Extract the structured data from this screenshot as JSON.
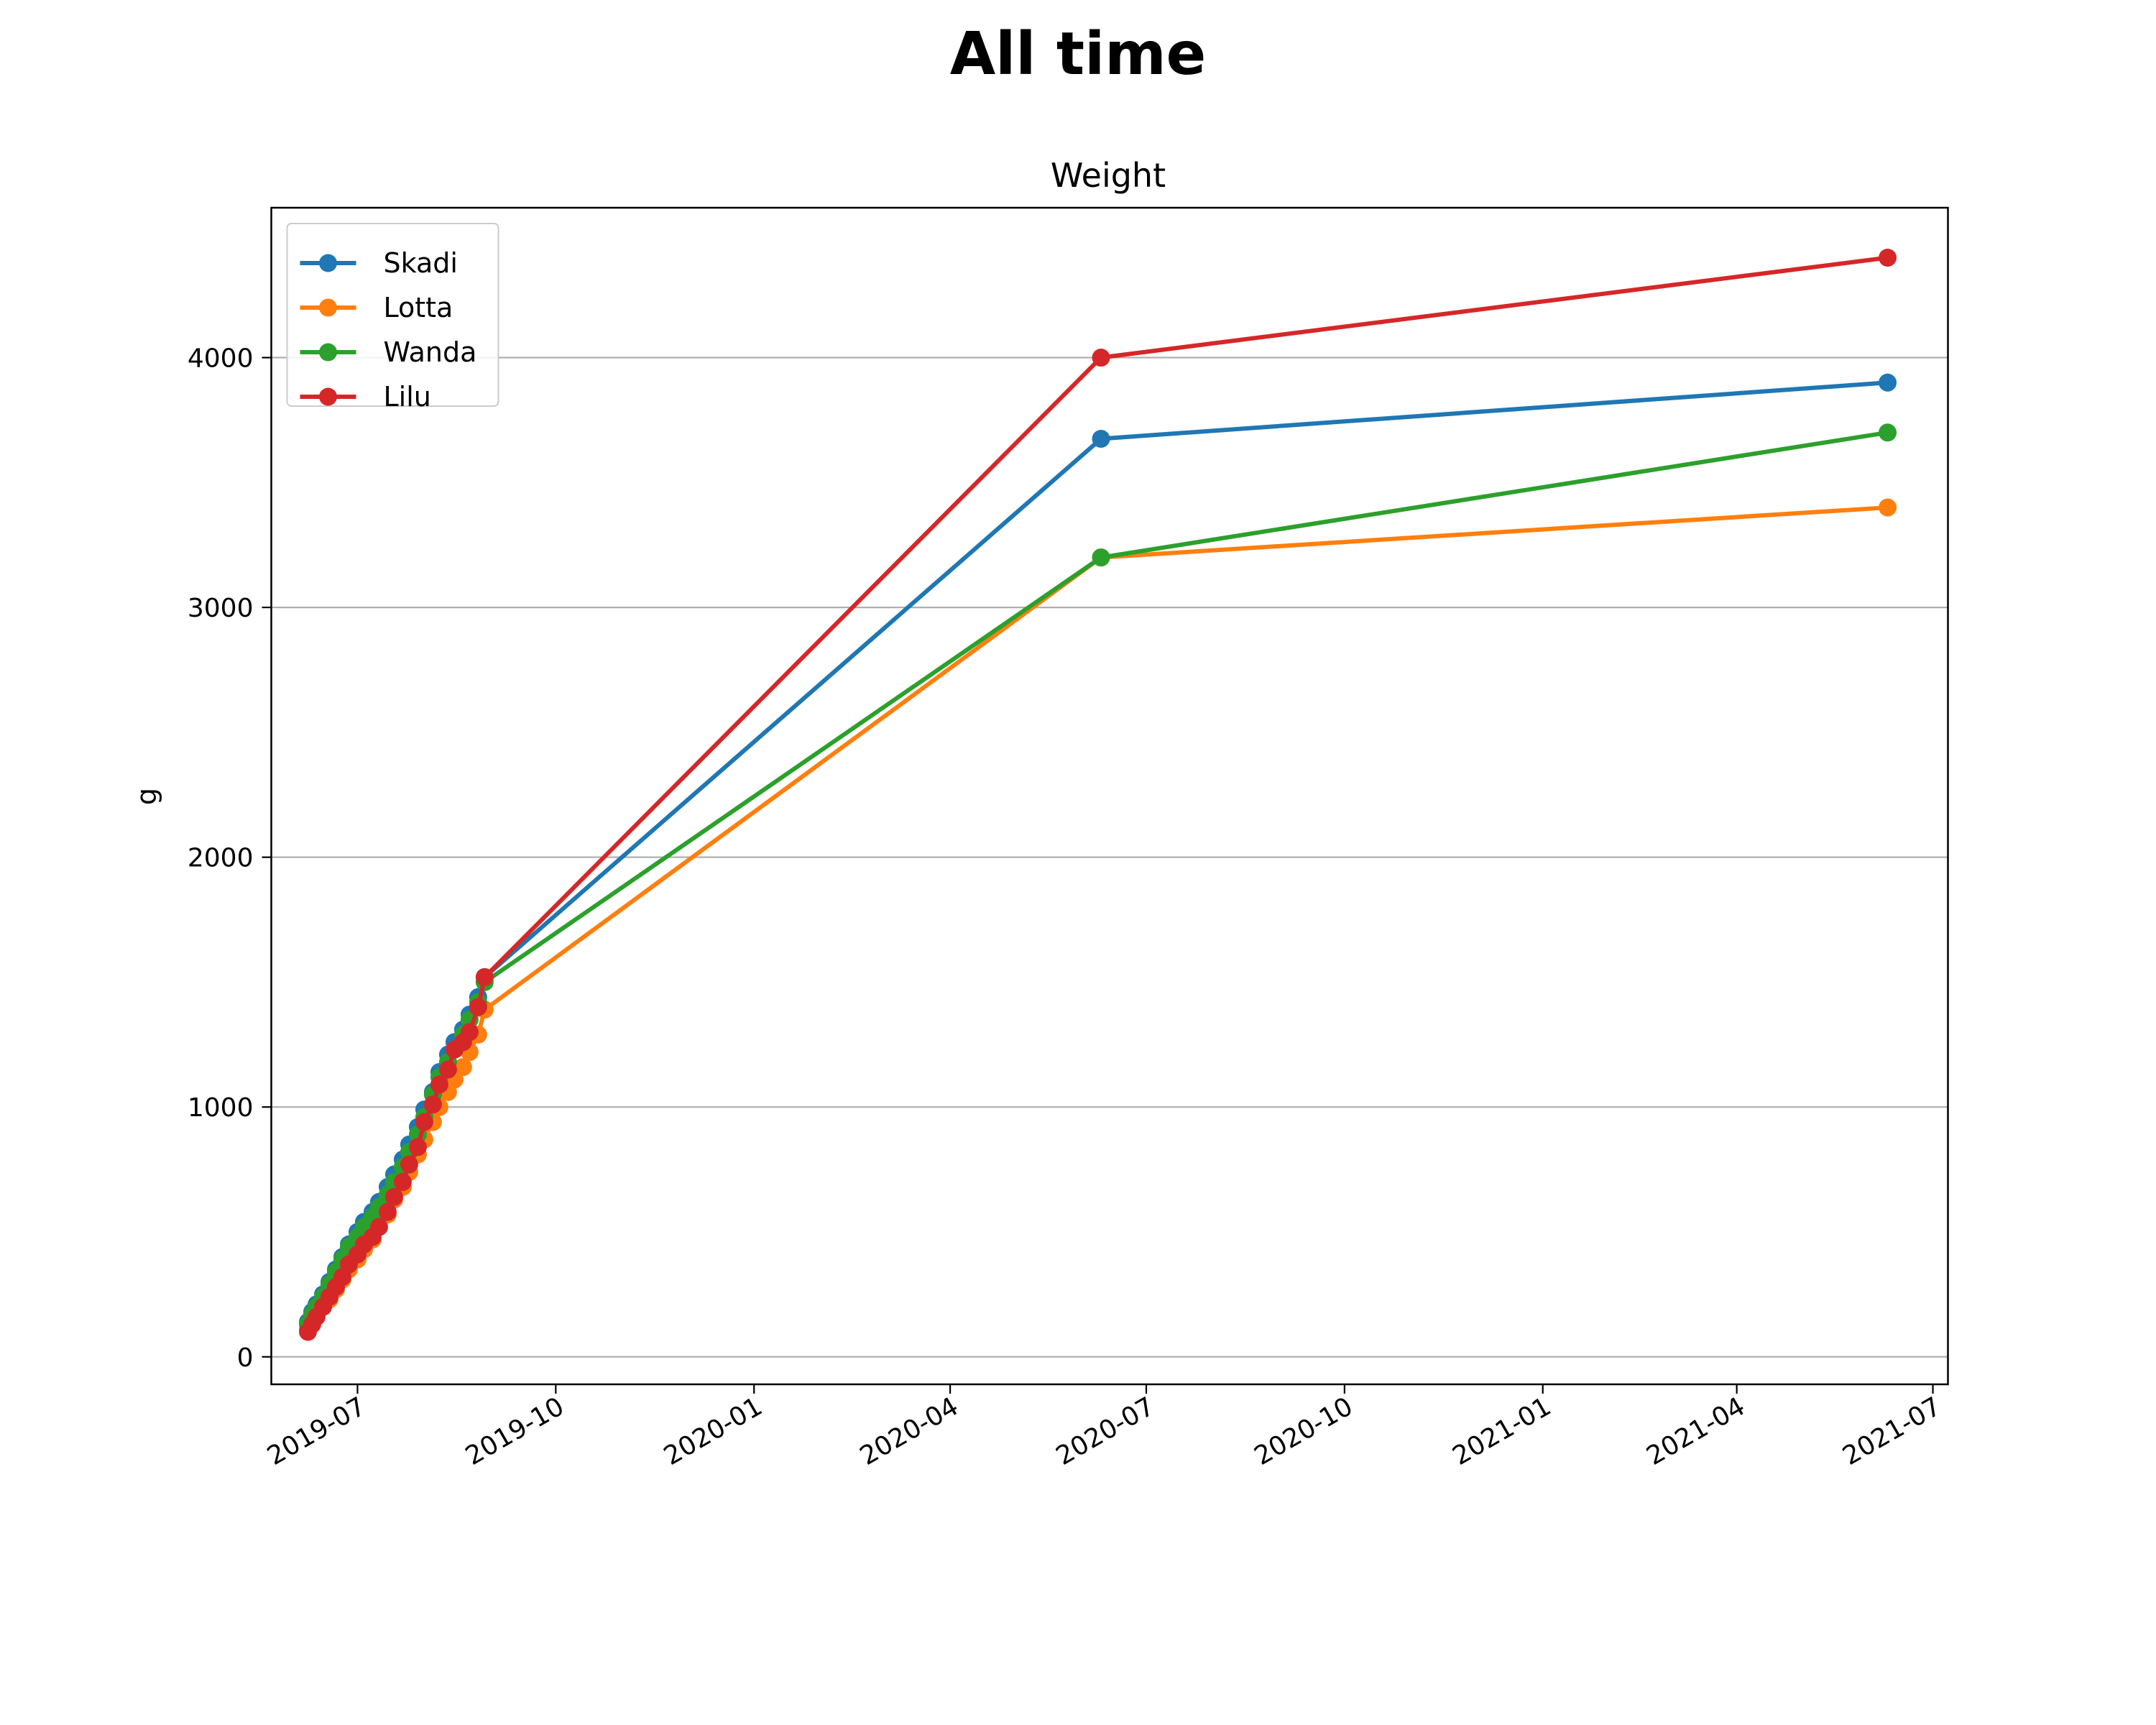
{
  "page": {
    "title": "All time"
  },
  "chart_data": {
    "type": "line",
    "title": "Weight",
    "xlabel": "",
    "ylabel": "g",
    "x_type": "date",
    "xlim": [
      "2019-05-22",
      "2021-07-08"
    ],
    "ylim": [
      -110,
      4600
    ],
    "y_ticks": [
      0,
      1000,
      2000,
      3000,
      4000
    ],
    "y_tick_labels": [
      "0",
      "1000",
      "2000",
      "3000",
      "4000"
    ],
    "x_ticks": [
      "2019-07-01",
      "2019-10-01",
      "2020-01-01",
      "2020-04-01",
      "2020-07-01",
      "2020-10-01",
      "2021-01-01",
      "2021-04-01",
      "2021-07-01"
    ],
    "x_tick_labels": [
      "2019-07",
      "2019-10",
      "2020-01",
      "2020-04",
      "2020-07",
      "2020-10",
      "2021-01",
      "2021-04",
      "2021-07"
    ],
    "grid": "horizontal",
    "legend_position": "top-left",
    "series": [
      {
        "name": "Skadi",
        "color": "#1f77b4",
        "x": [
          "2019-06-08",
          "2019-06-10",
          "2019-06-12",
          "2019-06-15",
          "2019-06-18",
          "2019-06-21",
          "2019-06-24",
          "2019-06-27",
          "2019-07-01",
          "2019-07-04",
          "2019-07-08",
          "2019-07-11",
          "2019-07-15",
          "2019-07-18",
          "2019-07-22",
          "2019-07-25",
          "2019-07-29",
          "2019-08-01",
          "2019-08-05",
          "2019-08-08",
          "2019-08-12",
          "2019-08-15",
          "2019-08-19",
          "2019-08-22",
          "2019-08-26",
          "2019-08-29",
          "2020-06-10",
          "2021-06-10"
        ],
        "y": [
          140,
          180,
          210,
          250,
          300,
          350,
          400,
          450,
          500,
          540,
          580,
          620,
          680,
          730,
          790,
          850,
          920,
          990,
          1060,
          1140,
          1210,
          1260,
          1310,
          1370,
          1440,
          1520,
          3675,
          3900
        ]
      },
      {
        "name": "Lotta",
        "color": "#ff7f0e",
        "x": [
          "2019-06-08",
          "2019-06-10",
          "2019-06-12",
          "2019-06-15",
          "2019-06-18",
          "2019-06-21",
          "2019-06-24",
          "2019-06-27",
          "2019-07-01",
          "2019-07-04",
          "2019-07-08",
          "2019-07-11",
          "2019-07-15",
          "2019-07-18",
          "2019-07-22",
          "2019-07-25",
          "2019-07-29",
          "2019-08-01",
          "2019-08-05",
          "2019-08-08",
          "2019-08-12",
          "2019-08-15",
          "2019-08-19",
          "2019-08-22",
          "2019-08-26",
          "2019-08-29",
          "2020-06-10",
          "2021-06-10"
        ],
        "y": [
          110,
          140,
          170,
          200,
          230,
          270,
          310,
          350,
          390,
          430,
          470,
          520,
          570,
          630,
          680,
          740,
          810,
          870,
          940,
          1000,
          1060,
          1110,
          1160,
          1220,
          1290,
          1390,
          3200,
          3400
        ]
      },
      {
        "name": "Wanda",
        "color": "#2ca02c",
        "x": [
          "2019-06-08",
          "2019-06-10",
          "2019-06-12",
          "2019-06-15",
          "2019-06-18",
          "2019-06-21",
          "2019-06-24",
          "2019-06-27",
          "2019-07-01",
          "2019-07-04",
          "2019-07-08",
          "2019-07-11",
          "2019-07-15",
          "2019-07-18",
          "2019-07-22",
          "2019-07-25",
          "2019-07-29",
          "2019-08-01",
          "2019-08-05",
          "2019-08-08",
          "2019-08-12",
          "2019-08-15",
          "2019-08-19",
          "2019-08-22",
          "2019-08-26",
          "2019-08-29",
          "2020-06-10",
          "2021-06-10"
        ],
        "y": [
          130,
          170,
          200,
          240,
          290,
          340,
          390,
          440,
          480,
          520,
          560,
          600,
          650,
          700,
          760,
          820,
          890,
          960,
          1050,
          1120,
          1180,
          1230,
          1290,
          1350,
          1420,
          1500,
          3200,
          3700
        ]
      },
      {
        "name": "Lilu",
        "color": "#d62728",
        "x": [
          "2019-06-08",
          "2019-06-10",
          "2019-06-12",
          "2019-06-15",
          "2019-06-18",
          "2019-06-21",
          "2019-06-24",
          "2019-06-27",
          "2019-07-01",
          "2019-07-04",
          "2019-07-08",
          "2019-07-11",
          "2019-07-15",
          "2019-07-18",
          "2019-07-22",
          "2019-07-25",
          "2019-07-29",
          "2019-08-01",
          "2019-08-05",
          "2019-08-08",
          "2019-08-12",
          "2019-08-15",
          "2019-08-19",
          "2019-08-22",
          "2019-08-26",
          "2019-08-29",
          "2020-06-10",
          "2021-06-10"
        ],
        "y": [
          100,
          130,
          160,
          200,
          240,
          280,
          320,
          370,
          410,
          450,
          480,
          520,
          580,
          640,
          700,
          770,
          840,
          940,
          1010,
          1090,
          1150,
          1230,
          1260,
          1300,
          1400,
          1520,
          4000,
          4400
        ]
      }
    ]
  }
}
